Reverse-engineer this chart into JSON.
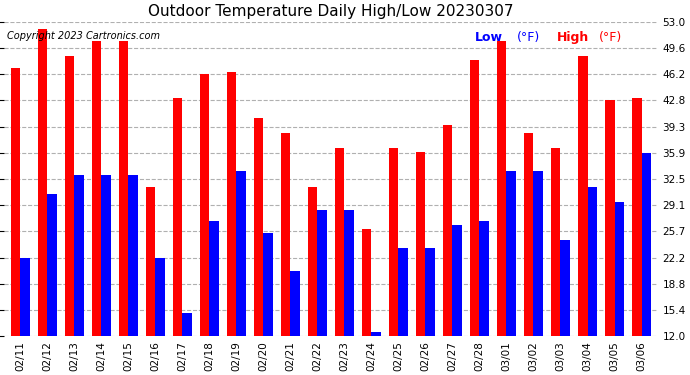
{
  "title": "Outdoor Temperature Daily High/Low 20230307",
  "copyright": "Copyright 2023 Cartronics.com",
  "legend_low_label": "Low",
  "legend_high_label": "High",
  "legend_unit": "(°F)",
  "ylim": [
    12.0,
    53.0
  ],
  "yticks": [
    12.0,
    15.4,
    18.8,
    22.2,
    25.7,
    29.1,
    32.5,
    35.9,
    39.3,
    42.8,
    46.2,
    49.6,
    53.0
  ],
  "dates": [
    "02/11",
    "02/12",
    "02/13",
    "02/14",
    "02/15",
    "02/16",
    "02/17",
    "02/18",
    "02/19",
    "02/20",
    "02/21",
    "02/22",
    "02/23",
    "02/24",
    "02/25",
    "02/26",
    "02/27",
    "02/28",
    "03/01",
    "03/02",
    "03/03",
    "03/04",
    "03/05",
    "03/06"
  ],
  "highs": [
    47.0,
    52.0,
    48.5,
    50.5,
    50.5,
    31.5,
    43.0,
    46.2,
    46.5,
    40.5,
    38.5,
    31.5,
    36.5,
    26.0,
    36.5,
    36.0,
    39.5,
    48.0,
    50.5,
    38.5,
    36.5,
    48.5,
    42.8,
    43.0
  ],
  "lows": [
    22.2,
    30.5,
    33.0,
    33.0,
    33.0,
    22.2,
    15.0,
    27.0,
    33.5,
    25.5,
    20.5,
    28.5,
    28.5,
    12.5,
    23.5,
    23.5,
    26.5,
    27.0,
    33.5,
    33.5,
    24.5,
    31.5,
    29.5,
    35.9
  ],
  "high_color": "#ff0000",
  "low_color": "#0000ff",
  "bg_color": "#ffffff",
  "grid_color": "#b0b0b0",
  "title_color": "#000000",
  "copyright_color": "#000000",
  "bar_width": 0.35,
  "title_fontsize": 11,
  "tick_fontsize": 7.5,
  "copyright_fontsize": 7,
  "legend_fontsize": 9
}
